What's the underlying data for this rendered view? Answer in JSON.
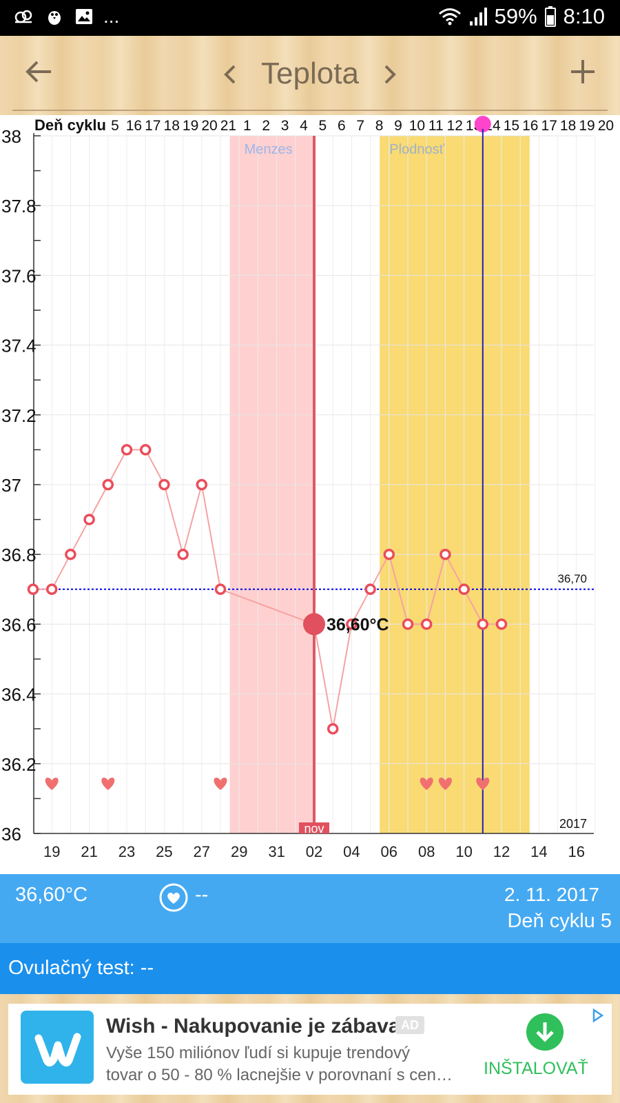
{
  "status_bar": {
    "more": "...",
    "battery": "59%",
    "time": "8:10",
    "icons": [
      "cloud-icon",
      "bird-icon",
      "image-icon",
      "wifi-icon",
      "signal-icon",
      "battery-icon"
    ]
  },
  "header": {
    "title": "Teplota",
    "icons": [
      "back-arrow-icon",
      "chevron-left-icon",
      "chevron-right-icon",
      "plus-icon"
    ]
  },
  "chart_data": {
    "type": "line",
    "ylabel_text": "",
    "ylim": [
      36,
      38
    ],
    "y_ticks": [
      "38",
      "37.8",
      "37.6",
      "37.4",
      "37.2",
      "37",
      "36.8",
      "36.6",
      "36.4",
      "36.2",
      "36"
    ],
    "cycle_label": "Deň cyklu",
    "cycle_day_labels": [
      "5",
      "16",
      "17",
      "18",
      "19",
      "20",
      "21",
      "1",
      "2",
      "3",
      "4",
      "5",
      "6",
      "7",
      "8",
      "9",
      "10",
      "11",
      "12",
      "13",
      "14",
      "15",
      "16",
      "17",
      "18",
      "19",
      "20"
    ],
    "x_tick_labels": [
      "19",
      "21",
      "23",
      "25",
      "27",
      "29",
      "31",
      "02",
      "04",
      "06",
      "08",
      "10",
      "12",
      "14",
      "16"
    ],
    "month_label": "nov",
    "year_label": "2017",
    "series": [
      {
        "values": [
          {
            "x": "Oct 18",
            "y": 36.7
          },
          {
            "x": "Oct 19",
            "y": 36.7
          },
          {
            "x": "Oct 20",
            "y": 36.8
          },
          {
            "x": "Oct 21",
            "y": 36.9
          },
          {
            "x": "Oct 22",
            "y": 37.0
          },
          {
            "x": "Oct 23",
            "y": 37.1
          },
          {
            "x": "Oct 24",
            "y": 37.1
          },
          {
            "x": "Oct 25",
            "y": 37.0
          },
          {
            "x": "Oct 26",
            "y": 36.8
          },
          {
            "x": "Oct 27",
            "y": 37.0
          },
          {
            "x": "Oct 28",
            "y": 36.7
          },
          {
            "x": "Nov 02",
            "y": 36.6
          },
          {
            "x": "Nov 03",
            "y": 36.3
          },
          {
            "x": "Nov 04",
            "y": 36.6
          },
          {
            "x": "Nov 05",
            "y": 36.7
          },
          {
            "x": "Nov 06",
            "y": 36.8
          },
          {
            "x": "Nov 07",
            "y": 36.6
          },
          {
            "x": "Nov 08",
            "y": 36.6
          },
          {
            "x": "Nov 09",
            "y": 36.8
          },
          {
            "x": "Nov 10",
            "y": 36.7
          },
          {
            "x": "Nov 11",
            "y": 36.6
          },
          {
            "x": "Nov 12",
            "y": 36.6
          }
        ]
      }
    ],
    "selected_point": {
      "x": "Nov 02",
      "y": 36.6,
      "label": "36,60°C"
    },
    "baseline": {
      "y": 36.7,
      "label": "36,70"
    },
    "bands": [
      {
        "label": "Menzes",
        "from": "Oct 29",
        "to": "Nov 02",
        "color": "#ffd0d0"
      },
      {
        "label": "Plodnosť",
        "from": "Nov 06",
        "to": "Nov 13",
        "color": "#f9da73"
      }
    ],
    "ovulation_day": "Nov 11",
    "intercourse_days": [
      "Oct 19",
      "Oct 22",
      "Oct 28",
      "Nov 08",
      "Nov 09",
      "Nov 11"
    ],
    "grid": true,
    "colors": {
      "line": "#f6a2a2",
      "marker": "#ea4d5a",
      "selected": "#e0505e",
      "baseline": "#0000ee",
      "ovulation_line": "#2222aa",
      "today_line": "#d95b66"
    }
  },
  "info": {
    "temperature": "36,60°C",
    "sex_value": "--",
    "date": "2. 11. 2017",
    "cycle_day": "Deň cyklu 5",
    "icon": "heart-circle-icon"
  },
  "ovulation_test": {
    "label": "Ovulačný test: --"
  },
  "ad": {
    "title": "Wish - Nakupovanie je zábava",
    "badge": "AD",
    "description_line1": "Vyše 150 miliónov ľudí si kupuje trendový",
    "description_line2": "tovar o 50 - 80 % lacnejšie v porovnaní s cen…",
    "install_label": "INŠTALOVAŤ",
    "colors": {
      "brand": "#2fb3ea",
      "install": "#2fbf5b"
    }
  }
}
